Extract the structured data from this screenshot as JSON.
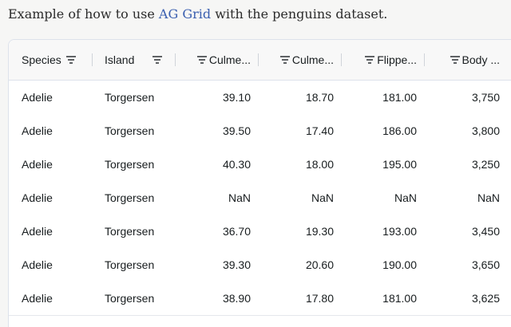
{
  "intro": {
    "before": "Example of how to use ",
    "link": "AG Grid",
    "after": " with the penguins dataset."
  },
  "grid": {
    "columns": [
      {
        "label": "Species",
        "align": "left",
        "filter_pos": "after"
      },
      {
        "label": "Island",
        "align": "left",
        "filter_pos": "after"
      },
      {
        "label": "Culme...",
        "align": "right",
        "filter_pos": "before"
      },
      {
        "label": "Culme...",
        "align": "right",
        "filter_pos": "before"
      },
      {
        "label": "Flippe...",
        "align": "right",
        "filter_pos": "before"
      },
      {
        "label": "Body ...",
        "align": "right",
        "filter_pos": "before"
      }
    ],
    "rows": [
      [
        "Adelie",
        "Torgersen",
        "39.10",
        "18.70",
        "181.00",
        "3,750"
      ],
      [
        "Adelie",
        "Torgersen",
        "39.50",
        "17.40",
        "186.00",
        "3,800"
      ],
      [
        "Adelie",
        "Torgersen",
        "40.30",
        "18.00",
        "195.00",
        "3,250"
      ],
      [
        "Adelie",
        "Torgersen",
        "NaN",
        "NaN",
        "NaN",
        "NaN"
      ],
      [
        "Adelie",
        "Torgersen",
        "36.70",
        "19.30",
        "193.00",
        "3,450"
      ],
      [
        "Adelie",
        "Torgersen",
        "39.30",
        "20.60",
        "190.00",
        "3,650"
      ],
      [
        "Adelie",
        "Torgersen",
        "38.90",
        "17.80",
        "181.00",
        "3,625"
      ]
    ]
  },
  "icons": {
    "column_filter": "filter-lines-icon"
  },
  "colors": {
    "link": "#3a5fb0",
    "grid_border": "#dde2eb",
    "header_bg": "#f8f8f8"
  }
}
